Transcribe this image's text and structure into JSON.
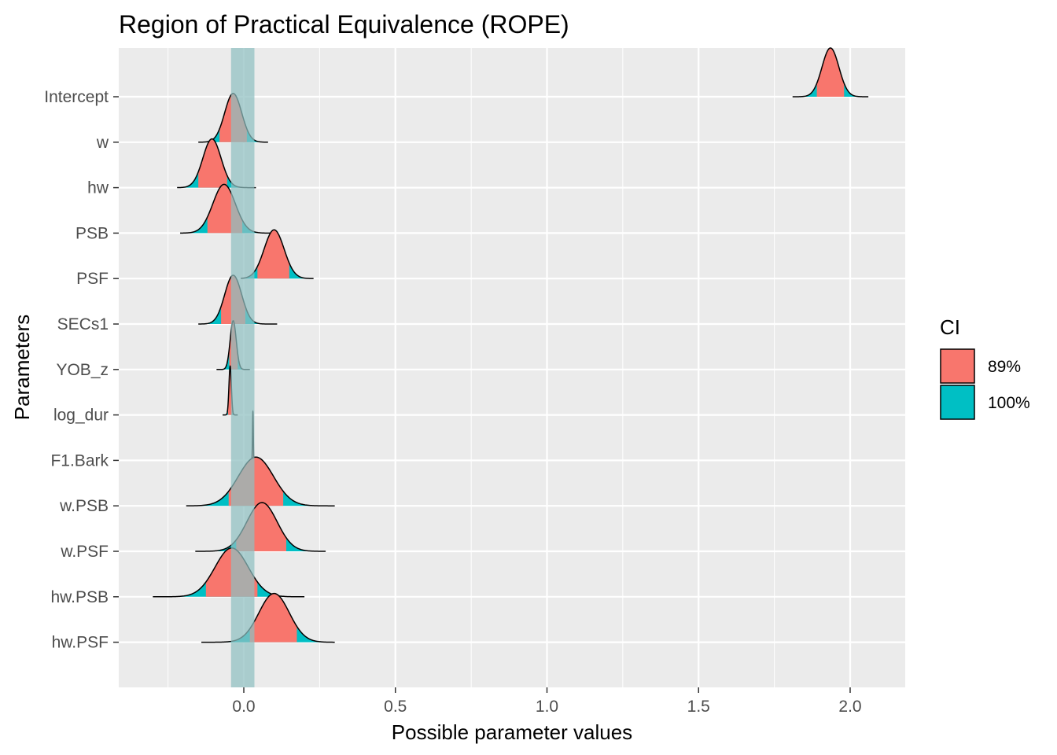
{
  "chart_data": {
    "type": "area",
    "title": "Region of Practical Equivalence (ROPE)",
    "xlabel": "Possible parameter values",
    "ylabel": "Parameters",
    "xlim": [
      -0.42,
      2.18
    ],
    "x_ticks": [
      0.0,
      0.5,
      1.0,
      1.5,
      2.0
    ],
    "x_tick_labels": [
      "0.0",
      "0.5",
      "1.0",
      "1.5",
      "2.0"
    ],
    "grid": true,
    "rope": {
      "low": -0.042,
      "high": 0.035,
      "color": "#8fbfc1"
    },
    "legend": {
      "title": "CI",
      "position": "right",
      "entries": [
        {
          "label": "89%",
          "color": "#f8766d"
        },
        {
          "label": "100%",
          "color": "#00bfc4"
        }
      ]
    },
    "series": [
      {
        "name": "Intercept",
        "mean": 1.935,
        "sd": 0.028,
        "ci89": [
          1.89,
          1.98
        ],
        "range": [
          1.81,
          2.06
        ]
      },
      {
        "name": "w",
        "mean": -0.035,
        "sd": 0.028,
        "ci89": [
          -0.08,
          0.01
        ],
        "range": [
          -0.15,
          0.08
        ]
      },
      {
        "name": "hw",
        "mean": -0.105,
        "sd": 0.03,
        "ci89": [
          -0.15,
          -0.055
        ],
        "range": [
          -0.22,
          0.04
        ]
      },
      {
        "name": "PSB",
        "mean": -0.065,
        "sd": 0.037,
        "ci89": [
          -0.12,
          -0.005
        ],
        "range": [
          -0.21,
          0.09
        ]
      },
      {
        "name": "PSF",
        "mean": 0.1,
        "sd": 0.033,
        "ci89": [
          0.045,
          0.15
        ],
        "range": [
          -0.01,
          0.23
        ]
      },
      {
        "name": "SECs1",
        "mean": -0.035,
        "sd": 0.028,
        "ci89": [
          -0.075,
          0.005
        ],
        "range": [
          -0.15,
          0.11
        ]
      },
      {
        "name": "YOB_z",
        "mean": -0.035,
        "sd": 0.01,
        "ci89": [
          -0.048,
          -0.02
        ],
        "range": [
          -0.09,
          0.02
        ]
      },
      {
        "name": "log_dur",
        "mean": -0.045,
        "sd": 0.004,
        "ci89": [
          -0.052,
          -0.038
        ],
        "range": [
          -0.07,
          -0.02
        ]
      },
      {
        "name": "F1.Bark",
        "mean": 0.03,
        "sd": 0.0013,
        "ci89": [
          0.028,
          0.032
        ],
        "range": [
          0.025,
          0.036
        ]
      },
      {
        "name": "w.PSB",
        "mean": 0.04,
        "sd": 0.058,
        "ci89": [
          -0.05,
          0.13
        ],
        "range": [
          -0.19,
          0.3
        ]
      },
      {
        "name": "w.PSF",
        "mean": 0.06,
        "sd": 0.05,
        "ci89": [
          -0.025,
          0.14
        ],
        "range": [
          -0.16,
          0.27
        ]
      },
      {
        "name": "hw.PSB",
        "mean": -0.04,
        "sd": 0.055,
        "ci89": [
          -0.125,
          0.045
        ],
        "range": [
          -0.3,
          0.2
        ]
      },
      {
        "name": "hw.PSF",
        "mean": 0.1,
        "sd": 0.05,
        "ci89": [
          0.02,
          0.175
        ],
        "range": [
          -0.14,
          0.3
        ]
      }
    ]
  }
}
